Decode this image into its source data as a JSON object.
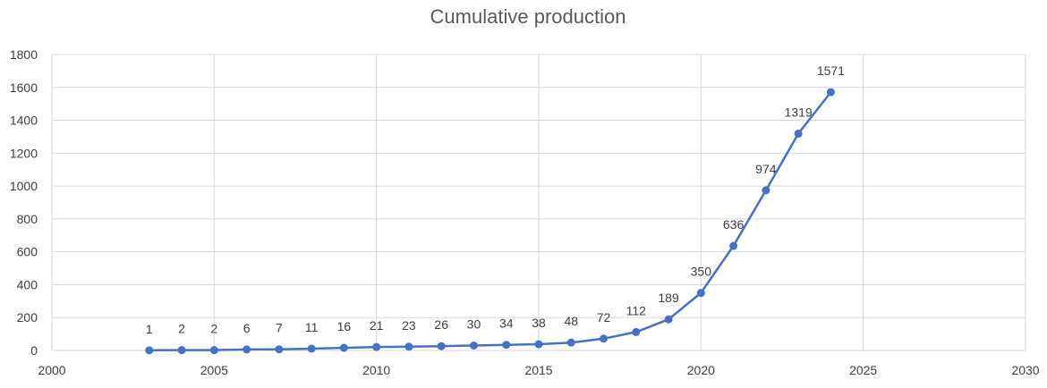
{
  "chart_data": {
    "type": "scatter",
    "title": "Cumulative production",
    "xlabel": "",
    "ylabel": "",
    "xlim": [
      2000,
      2030
    ],
    "ylim": [
      0,
      1800
    ],
    "x_ticks": [
      2000,
      2005,
      2010,
      2015,
      2020,
      2025,
      2030
    ],
    "y_ticks": [
      0,
      200,
      400,
      600,
      800,
      1000,
      1200,
      1400,
      1600,
      1800
    ],
    "grid": true,
    "legend": "none",
    "line_color": "#4472C4",
    "grid_color": "#d9d9d9",
    "series": [
      {
        "x": [
          2003,
          2004,
          2005,
          2006,
          2007,
          2008,
          2009,
          2010,
          2011,
          2012,
          2013,
          2014,
          2015,
          2016,
          2017,
          2018,
          2019,
          2020,
          2021,
          2022,
          2023,
          2024
        ],
        "y": [
          1,
          2,
          2,
          6,
          7,
          11,
          16,
          21,
          23,
          26,
          30,
          34,
          38,
          48,
          72,
          112,
          189,
          350,
          636,
          974,
          1319,
          1571
        ],
        "labels": [
          "1",
          "2",
          "2",
          "6",
          "7",
          "11",
          "16",
          "21",
          "23",
          "26",
          "30",
          "34",
          "38",
          "48",
          "72",
          "112",
          "189",
          "350",
          "636",
          "974",
          "1319",
          "1571"
        ]
      }
    ]
  }
}
